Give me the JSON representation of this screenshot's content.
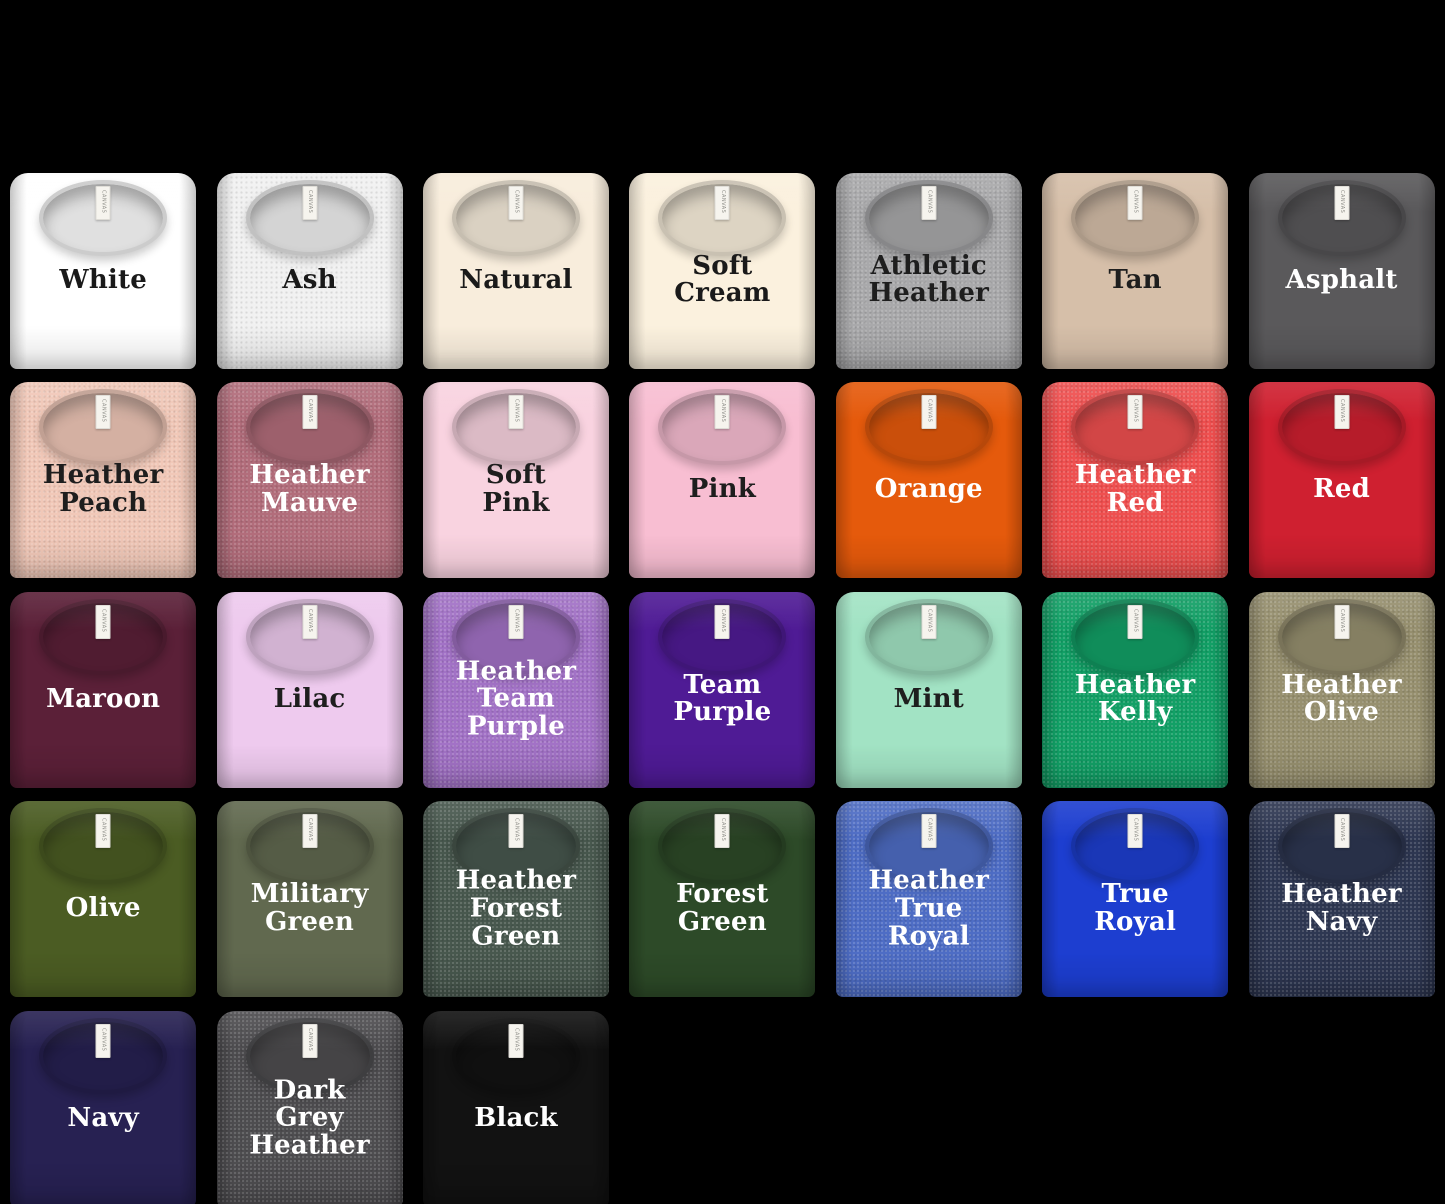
{
  "page": {
    "background_color": "#000000",
    "columns_per_row": 7,
    "tag_label": "CANVAS"
  },
  "shirts": [
    {
      "name": "White",
      "lines": [
        "White"
      ],
      "color": "#ffffff",
      "text_color": "#1a1a1a",
      "heather": false
    },
    {
      "name": "Ash",
      "lines": [
        "Ash"
      ],
      "color": "#f1f1f1",
      "text_color": "#1a1a1a",
      "heather": true
    },
    {
      "name": "Natural",
      "lines": [
        "Natural"
      ],
      "color": "#f8eddc",
      "text_color": "#1a1a1a",
      "heather": false
    },
    {
      "name": "Soft Cream",
      "lines": [
        "Soft",
        "Cream"
      ],
      "color": "#fbf1de",
      "text_color": "#1a1a1a",
      "heather": false
    },
    {
      "name": "Athletic Heather",
      "lines": [
        "Athletic",
        "Heather"
      ],
      "color": "#a9a9ab",
      "text_color": "#1e1e1e",
      "heather": true
    },
    {
      "name": "Tan",
      "lines": [
        "Tan"
      ],
      "color": "#d6bfa9",
      "text_color": "#1e1e1e",
      "heather": false
    },
    {
      "name": "Asphalt",
      "lines": [
        "Asphalt"
      ],
      "color": "#5a595b",
      "text_color": "#ffffff",
      "heather": false
    },
    {
      "name": "Heather Peach",
      "lines": [
        "Heather",
        "Peach"
      ],
      "color": "#f1c8b8",
      "text_color": "#1e1e1e",
      "heather": true
    },
    {
      "name": "Heather Mauve",
      "lines": [
        "Heather",
        "Mauve"
      ],
      "color": "#b26d7b",
      "text_color": "#ffffff",
      "heather": true
    },
    {
      "name": "Soft Pink",
      "lines": [
        "Soft",
        "Pink"
      ],
      "color": "#f9d3e0",
      "text_color": "#1e1e1e",
      "heather": false
    },
    {
      "name": "Pink",
      "lines": [
        "Pink"
      ],
      "color": "#f8bed2",
      "text_color": "#1e1e1e",
      "heather": false
    },
    {
      "name": "Orange",
      "lines": [
        "Orange"
      ],
      "color": "#e55a0c",
      "text_color": "#ffffff",
      "heather": false
    },
    {
      "name": "Heather Red",
      "lines": [
        "Heather",
        "Red"
      ],
      "color": "#ef4f4f",
      "text_color": "#ffffff",
      "heather": true
    },
    {
      "name": "Red",
      "lines": [
        "Red"
      ],
      "color": "#cf2030",
      "text_color": "#ffffff",
      "heather": false
    },
    {
      "name": "Maroon",
      "lines": [
        "Maroon"
      ],
      "color": "#5b2038",
      "text_color": "#ffffff",
      "heather": false
    },
    {
      "name": "Lilac",
      "lines": [
        "Lilac"
      ],
      "color": "#eecaee",
      "text_color": "#1e1e1e",
      "heather": false
    },
    {
      "name": "Heather Team Purple",
      "lines": [
        "Heather",
        "Team",
        "Purple"
      ],
      "color": "#a272c6",
      "text_color": "#ffffff",
      "heather": true
    },
    {
      "name": "Team Purple",
      "lines": [
        "Team",
        "Purple"
      ],
      "color": "#4f1b95",
      "text_color": "#ffffff",
      "heather": false
    },
    {
      "name": "Mint",
      "lines": [
        "Mint"
      ],
      "color": "#a2e3c4",
      "text_color": "#1e1e1e",
      "heather": false
    },
    {
      "name": "Heather Kelly",
      "lines": [
        "Heather",
        "Kelly"
      ],
      "color": "#12a066",
      "text_color": "#ffffff",
      "heather": true
    },
    {
      "name": "Heather Olive",
      "lines": [
        "Heather",
        "Olive"
      ],
      "color": "#97906f",
      "text_color": "#ffffff",
      "heather": true
    },
    {
      "name": "Olive",
      "lines": [
        "Olive"
      ],
      "color": "#4b5c23",
      "text_color": "#ffffff",
      "heather": false
    },
    {
      "name": "Military Green",
      "lines": [
        "Military",
        "Green"
      ],
      "color": "#61694f",
      "text_color": "#ffffff",
      "heather": false
    },
    {
      "name": "Heather Forest Green",
      "lines": [
        "Heather",
        "Forest",
        "Green"
      ],
      "color": "#48584e",
      "text_color": "#ffffff",
      "heather": true
    },
    {
      "name": "Forest Green",
      "lines": [
        "Forest",
        "Green"
      ],
      "color": "#2d4a28",
      "text_color": "#ffffff",
      "heather": false
    },
    {
      "name": "Heather True Royal",
      "lines": [
        "Heather",
        "True",
        "Royal"
      ],
      "color": "#4e6dc5",
      "text_color": "#ffffff",
      "heather": true
    },
    {
      "name": "True Royal",
      "lines": [
        "True",
        "Royal"
      ],
      "color": "#1d3ed0",
      "text_color": "#ffffff",
      "heather": false
    },
    {
      "name": "Heather Navy",
      "lines": [
        "Heather",
        "Navy"
      ],
      "color": "#2e3752",
      "text_color": "#ffffff",
      "heather": true
    },
    {
      "name": "Navy",
      "lines": [
        "Navy"
      ],
      "color": "#272152",
      "text_color": "#ffffff",
      "heather": false
    },
    {
      "name": "Dark Grey Heather",
      "lines": [
        "Dark",
        "Grey",
        "Heather"
      ],
      "color": "#4e4d50",
      "text_color": "#ffffff",
      "heather": true
    },
    {
      "name": "Black",
      "lines": [
        "Black"
      ],
      "color": "#121212",
      "text_color": "#ffffff",
      "heather": false
    }
  ]
}
